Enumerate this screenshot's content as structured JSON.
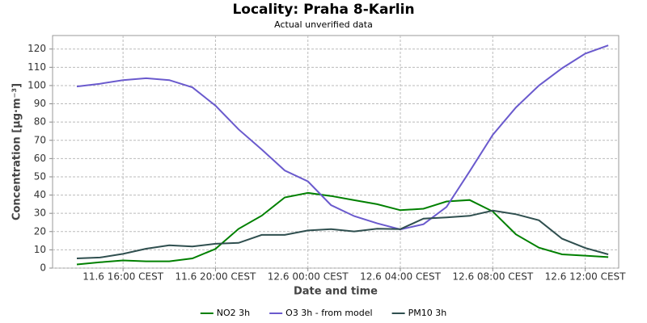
{
  "chart_data": {
    "type": "line",
    "title": "Locality: Praha 8-Karlin",
    "subtitle": "Actual unverified data",
    "x_label": "Date and time",
    "y_label": "Concentration [µg·m⁻³]",
    "x": [
      14,
      15,
      16,
      17,
      18,
      19,
      20,
      21,
      22,
      23,
      24,
      25,
      26,
      27,
      28,
      29,
      30,
      31,
      32,
      33,
      34,
      35,
      36,
      37
    ],
    "xlim": [
      12.95,
      37.45
    ],
    "xticks": [
      {
        "value": 16,
        "label": "11.6 16:00 CEST"
      },
      {
        "value": 20,
        "label": "11.6 20:00 CEST"
      },
      {
        "value": 24,
        "label": "12.6 00:00 CEST"
      },
      {
        "value": 28,
        "label": "12.6 04:00 CEST"
      },
      {
        "value": 32,
        "label": "12.6 08:00 CEST"
      },
      {
        "value": 36,
        "label": "12.6 12:00 CEST"
      }
    ],
    "ylim": [
      0,
      127.4
    ],
    "yticks": [
      0,
      10,
      20,
      30,
      40,
      50,
      60,
      70,
      80,
      90,
      100,
      110,
      120
    ],
    "grid": true,
    "legend": "bottom",
    "series": [
      {
        "name": "NO2 3h",
        "color": "#008000",
        "values": [
          2,
          3.2,
          4.2,
          3.7,
          3.7,
          5.3,
          10.5,
          21.5,
          28.7,
          38.7,
          41.2,
          39.5,
          37.2,
          35,
          31.7,
          32.5,
          36.5,
          37.3,
          31,
          18.5,
          11.2,
          7.5,
          6.8,
          6
        ]
      },
      {
        "name": "O3 3h - from model",
        "color": "#6a5acd",
        "values": [
          99.5,
          101,
          103,
          104,
          103,
          99,
          89,
          76,
          65,
          53.5,
          47.5,
          34.5,
          28.5,
          24.5,
          21.2,
          24,
          33.5,
          53,
          73,
          88,
          100,
          109.5,
          117.5,
          122
        ]
      },
      {
        "name": "PM10 3h",
        "color": "#2f4f4f",
        "values": [
          5.3,
          5.8,
          7.8,
          10.6,
          12.5,
          11.8,
          13.3,
          13.8,
          18.2,
          18.2,
          20.6,
          21.3,
          20.1,
          21.6,
          21.3,
          27.1,
          27.8,
          28.6,
          31.5,
          29.5,
          26.2,
          16.1,
          11,
          7.5
        ]
      }
    ]
  }
}
